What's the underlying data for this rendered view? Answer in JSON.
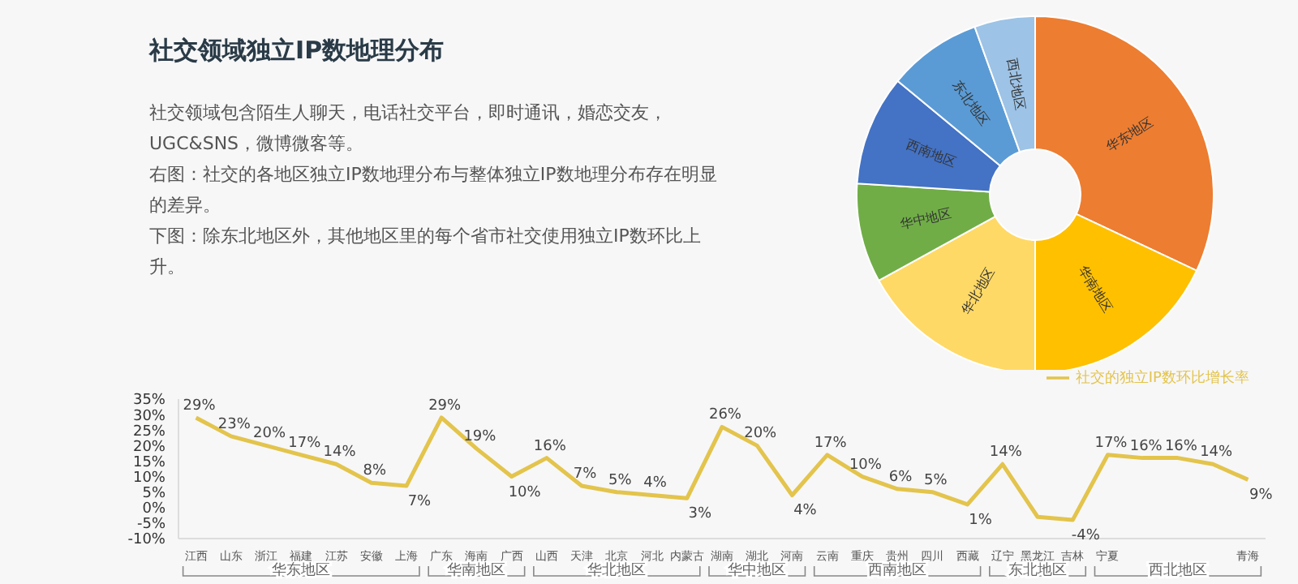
{
  "chart_data": [
    {
      "type": "other",
      "title": "社交领域独立IP数地理分布",
      "annotations": [
        "社交领域包含陌生人聊天，电话社交平台，即时通讯，婚恋交友，UGC&SNS，微博微客等。",
        "右图：社交的各地区独立IP数地理分布与整体独立IP数地理分布存在明显的差异。",
        "下图：除东北地区外，其他地区里的每个省市社交使用独立IP数环比上升。"
      ]
    },
    {
      "type": "donut",
      "categories": [
        "华东地区",
        "华南地区",
        "华北地区",
        "华中地区",
        "西南地区",
        "东北地区",
        "西北地区"
      ],
      "values": [
        32,
        18,
        17,
        9,
        10,
        8.5,
        5.5
      ],
      "colors": [
        "#ed7d31",
        "#ffc000",
        "#ffd966",
        "#70ad47",
        "#4472c4",
        "#5b9bd5",
        "#9dc3e6"
      ]
    },
    {
      "type": "line",
      "categories": [
        "江西",
        "山东",
        "浙江",
        "福建",
        "江苏",
        "安徽",
        "上海",
        "广东",
        "海南",
        "广西",
        "山西",
        "天津",
        "北京",
        "河北",
        "内蒙古",
        "湖南",
        "湖北",
        "河南",
        "云南",
        "重庆",
        "贵州",
        "四川",
        "西藏",
        "辽宁",
        "黑龙江",
        "吉林",
        "宁夏",
        null,
        null,
        null,
        "青海"
      ],
      "series": [
        {
          "name": "社交的独立IP数环比增长率",
          "color": "#e3c44c",
          "values": [
            29,
            23,
            20,
            17,
            14,
            8,
            7,
            29,
            19,
            10,
            16,
            7,
            5,
            4,
            3,
            26,
            20,
            4,
            17,
            10,
            6,
            5,
            1,
            14,
            -3,
            -4,
            17,
            16,
            16,
            14,
            9
          ],
          "value_labels": [
            "29%",
            "23%",
            "20%",
            "17%",
            "14%",
            "8%",
            "7%",
            "29%",
            "19%",
            "10%",
            "16%",
            "7%",
            "5%",
            "4%",
            "3%",
            "26%",
            "20%",
            "4%",
            "17%",
            "10%",
            "6%",
            "5%",
            "1%",
            "14%",
            null,
            "-4%",
            "17%",
            "16%",
            "16%",
            "14%",
            "9%"
          ]
        }
      ],
      "ylim": [
        -10,
        35
      ],
      "yticks": [
        {
          "value": 35,
          "label": "35%"
        },
        {
          "value": 30,
          "label": "30%"
        },
        {
          "value": 25,
          "label": "25%"
        },
        {
          "value": 20,
          "label": "20%"
        },
        {
          "value": 15,
          "label": "15%"
        },
        {
          "value": 10,
          "label": "10%"
        },
        {
          "value": 5,
          "label": "5%"
        },
        {
          "value": 0,
          "label": "0%"
        },
        {
          "value": -5,
          "label": "-5%"
        },
        {
          "value": -10,
          "label": "-10%"
        }
      ],
      "legend": "top right",
      "marker": "none",
      "annotations": [
        "华东地区",
        "华南地区",
        "华北地区",
        "华中地区",
        "西南地区",
        "东北地区",
        "西北地区"
      ]
    }
  ]
}
